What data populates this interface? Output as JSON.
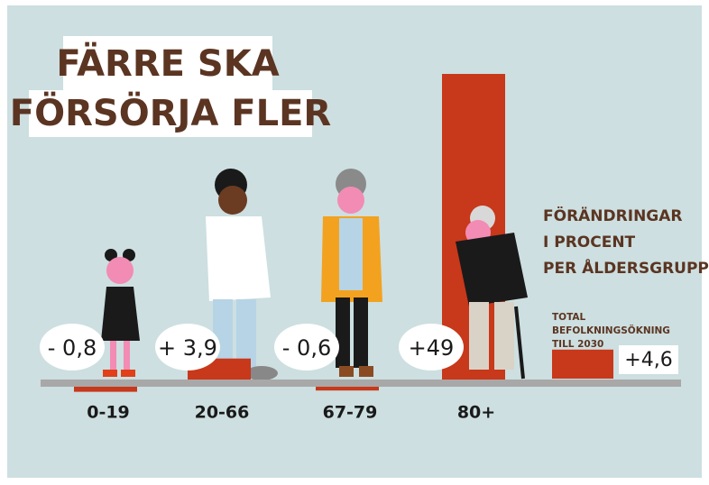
{
  "chart_data": {
    "type": "bar",
    "title": [
      "FÄRRE SKA",
      "FÖRSÖRJA FLER"
    ],
    "annotation": [
      "FÖRÄNDRINGAR",
      "I PROCENT",
      "PER ÅLDERSGRUPP"
    ],
    "categories": [
      "0-19",
      "20-66",
      "67-79",
      "80+"
    ],
    "values": [
      -0.8,
      3.9,
      -0.6,
      49
    ],
    "value_labels": [
      "- 0,8",
      "+ 3,9",
      "- 0,6",
      "+49"
    ],
    "color": "#c8381a",
    "total": {
      "label": [
        "TOTAL",
        "BEFOLKNINGSÖKNING",
        "TILL 2030"
      ],
      "value": 4.6,
      "value_label": "+4,6"
    }
  }
}
